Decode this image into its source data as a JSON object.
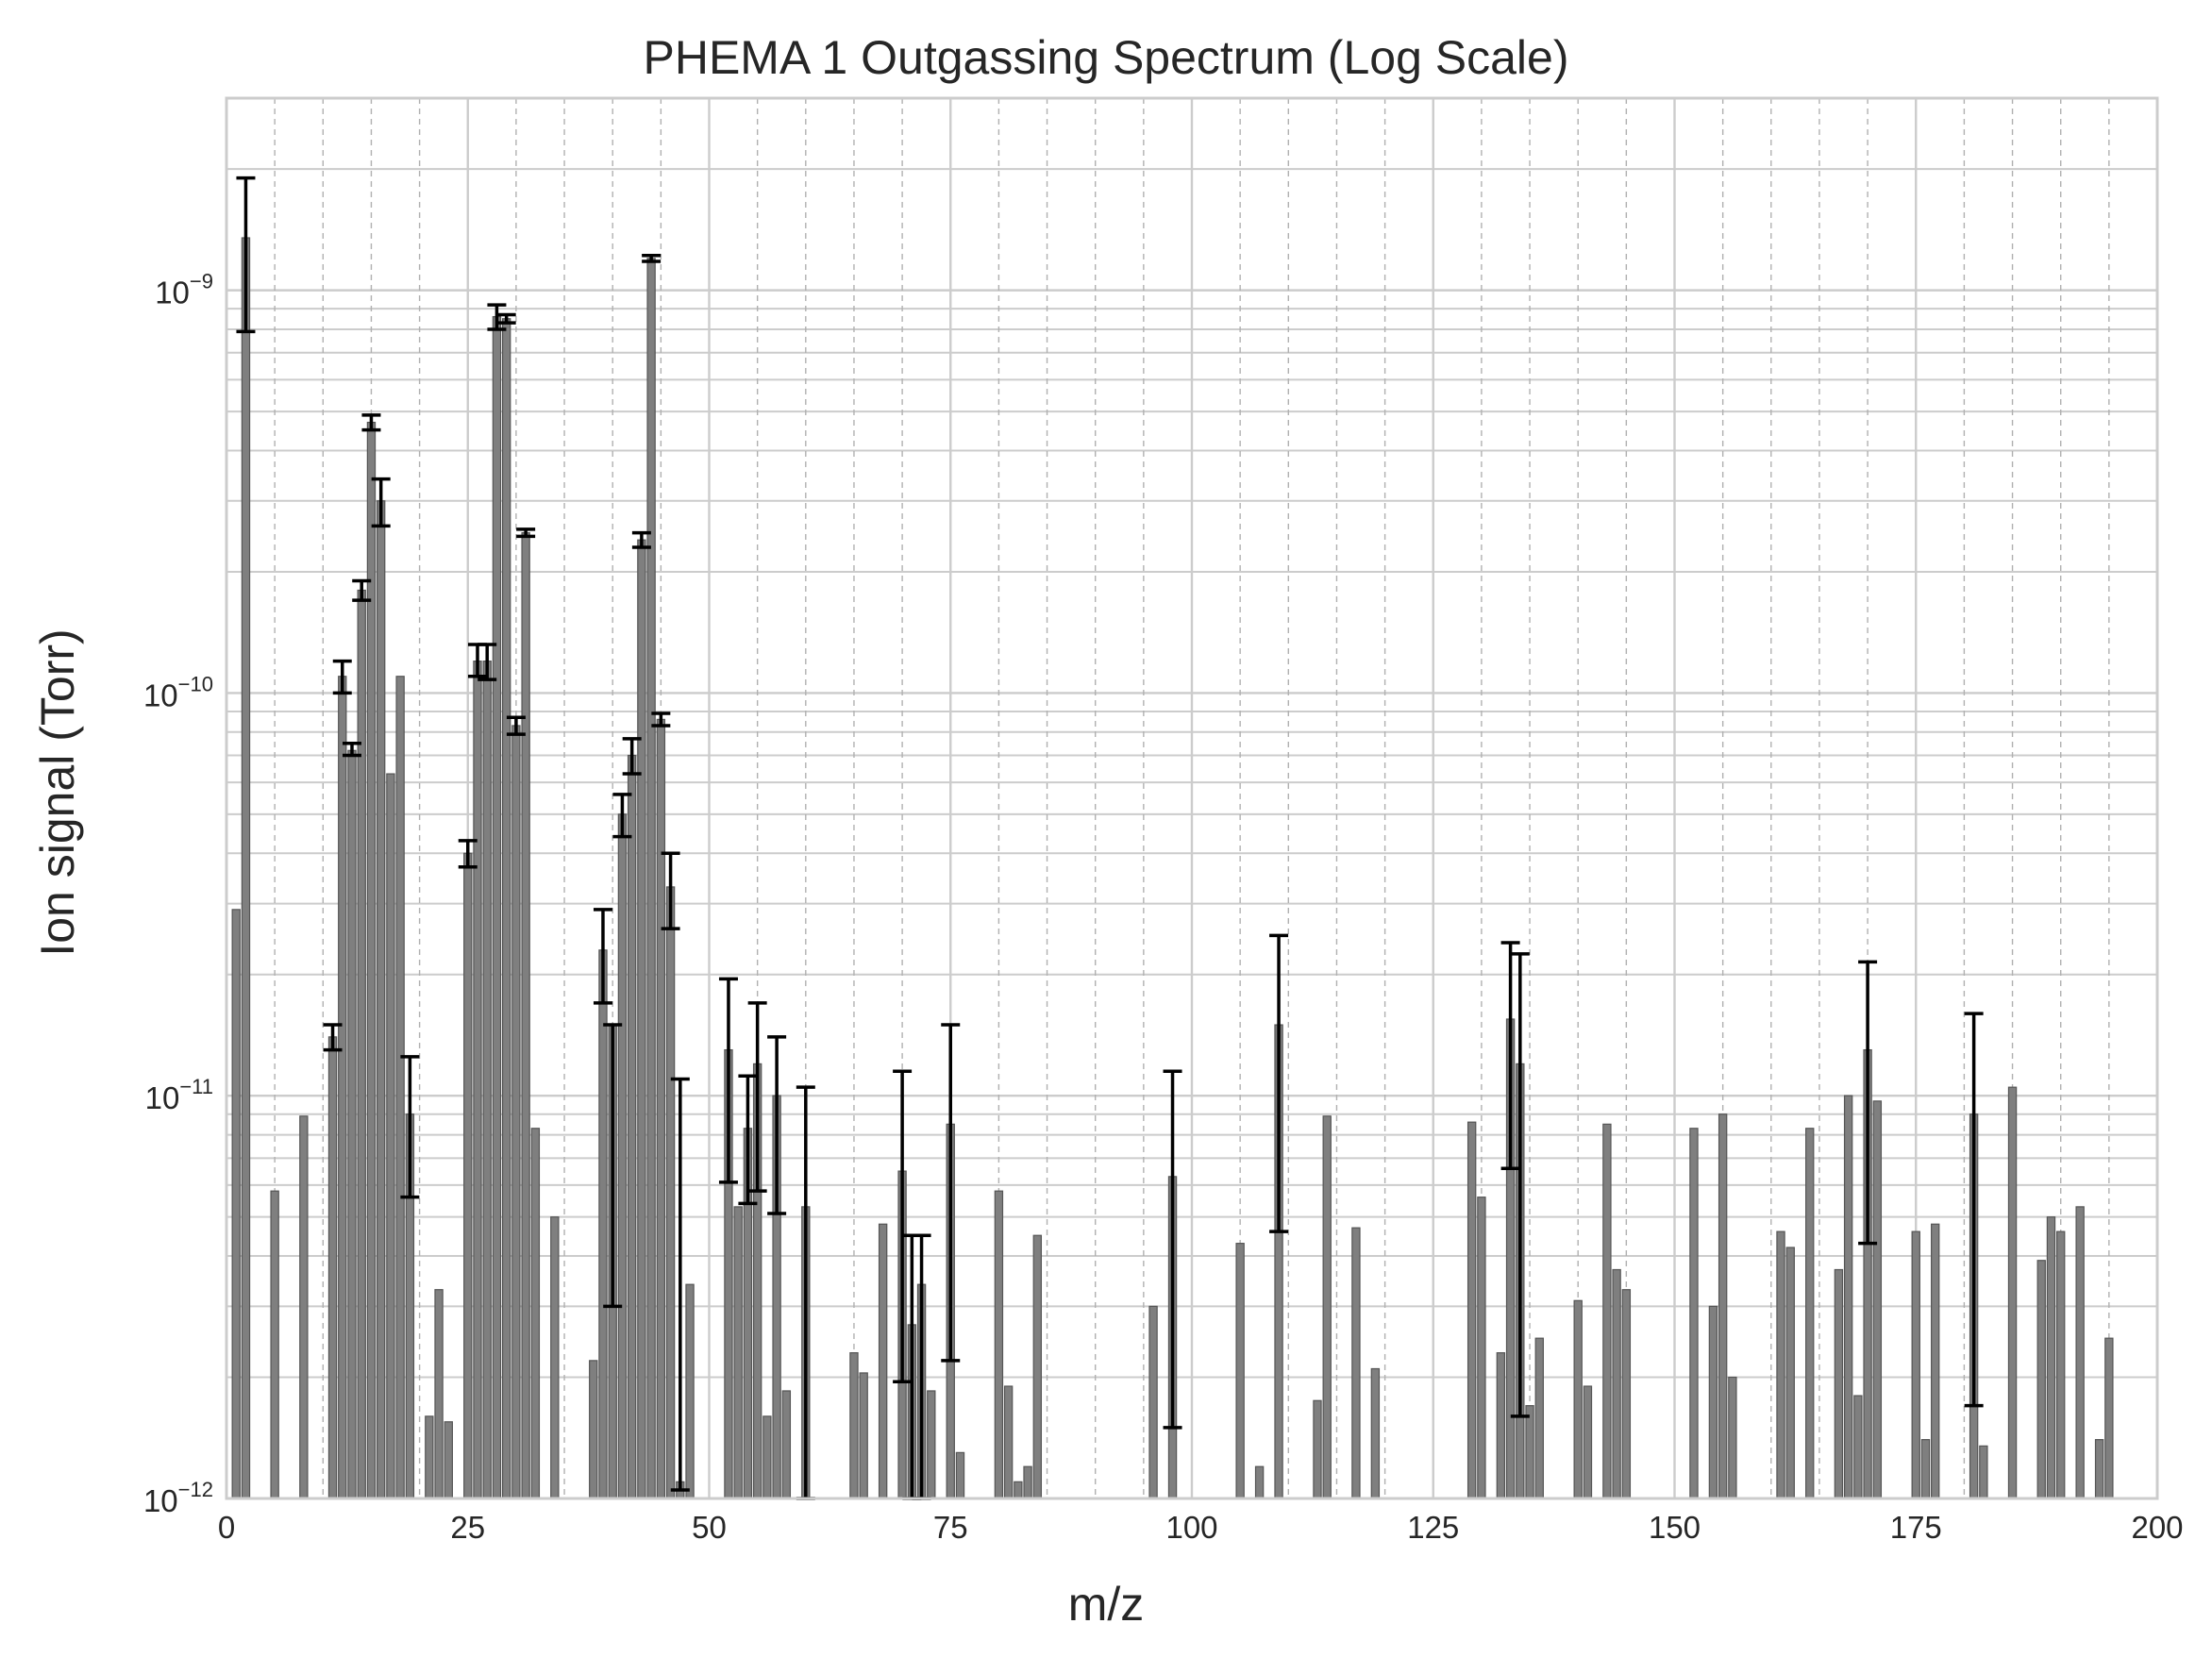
{
  "chart_data": {
    "type": "bar",
    "title": "PHEMA 1 Outgassing Spectrum (Log Scale)",
    "xlabel": "m/z",
    "ylabel": "Ion signal (Torr)",
    "xlim": [
      0,
      200
    ],
    "ylim": [
      1e-12,
      3e-09
    ],
    "yscale": "log",
    "grid": true,
    "x_ticks": [
      0,
      25,
      50,
      75,
      100,
      125,
      150,
      175,
      200
    ],
    "y_ticks": [
      {
        "value": 1e-12,
        "base": "10",
        "exp": "−12"
      },
      {
        "value": 1e-11,
        "base": "10",
        "exp": "−11"
      },
      {
        "value": 1e-10,
        "base": "10",
        "exp": "−10"
      },
      {
        "value": 1e-09,
        "base": "10",
        "exp": "−9"
      }
    ],
    "bar_color": "#7f7f7f",
    "error_color": "#000000",
    "bars": [
      {
        "x": 1,
        "y": 2.9e-11
      },
      {
        "x": 2,
        "y": 1.35e-09,
        "err": [
          7.9e-10,
          1.9e-09
        ]
      },
      {
        "x": 5,
        "y": 5.8e-12
      },
      {
        "x": 8,
        "y": 8.9e-12
      },
      {
        "x": 11,
        "y": 1.4e-11,
        "err": [
          1.3e-11,
          1.5e-11
        ]
      },
      {
        "x": 12,
        "y": 1.1e-10,
        "err": [
          1e-10,
          1.2e-10
        ]
      },
      {
        "x": 13,
        "y": 7.2e-11,
        "err": [
          7e-11,
          7.5e-11
        ]
      },
      {
        "x": 14,
        "y": 1.8e-10,
        "err": [
          1.7e-10,
          1.9e-10
        ]
      },
      {
        "x": 15,
        "y": 4.7e-10,
        "err": [
          4.5e-10,
          4.9e-10
        ]
      },
      {
        "x": 16,
        "y": 3e-10,
        "err": [
          2.6e-10,
          3.4e-10
        ]
      },
      {
        "x": 17,
        "y": 6.3e-11
      },
      {
        "x": 18,
        "y": 1.1e-10
      },
      {
        "x": 19,
        "y": 9e-12,
        "err": [
          5.6e-12,
          1.25e-11
        ]
      },
      {
        "x": 21,
        "y": 1.6e-12
      },
      {
        "x": 22,
        "y": 3.3e-12
      },
      {
        "x": 23,
        "y": 1.55e-12
      },
      {
        "x": 25,
        "y": 4e-11,
        "err": [
          3.7e-11,
          4.3e-11
        ]
      },
      {
        "x": 26,
        "y": 1.2e-10,
        "err": [
          1.1e-10,
          1.32e-10
        ]
      },
      {
        "x": 27,
        "y": 1.2e-10,
        "err": [
          1.08e-10,
          1.32e-10
        ]
      },
      {
        "x": 28,
        "y": 8.6e-10,
        "err": [
          8e-10,
          9.2e-10
        ]
      },
      {
        "x": 29,
        "y": 8.5e-10,
        "err": [
          8.3e-10,
          8.7e-10
        ]
      },
      {
        "x": 30,
        "y": 8.3e-11,
        "err": [
          7.9e-11,
          8.7e-11
        ]
      },
      {
        "x": 31,
        "y": 2.5e-10,
        "err": [
          2.45e-10,
          2.55e-10
        ]
      },
      {
        "x": 32,
        "y": 8.3e-12
      },
      {
        "x": 34,
        "y": 5e-12
      },
      {
        "x": 38,
        "y": 2.2e-12
      },
      {
        "x": 39,
        "y": 2.3e-11,
        "err": [
          1.7e-11,
          2.9e-11
        ]
      },
      {
        "x": 40,
        "y": 1.5e-11,
        "err": [
          3e-12,
          1.5e-11
        ]
      },
      {
        "x": 41,
        "y": 5e-11,
        "err": [
          4.4e-11,
          5.6e-11
        ]
      },
      {
        "x": 42,
        "y": 7e-11,
        "err": [
          6.3e-11,
          7.7e-11
        ]
      },
      {
        "x": 43,
        "y": 2.4e-10,
        "err": [
          2.3e-10,
          2.5e-10
        ]
      },
      {
        "x": 44,
        "y": 1.2e-09,
        "err": [
          1.18e-09,
          1.22e-09
        ]
      },
      {
        "x": 45,
        "y": 8.6e-11,
        "err": [
          8.3e-11,
          8.9e-11
        ]
      },
      {
        "x": 46,
        "y": 3.3e-11,
        "err": [
          2.6e-11,
          4e-11
        ]
      },
      {
        "x": 47,
        "y": 1.1e-12,
        "err": [
          1.05e-12,
          1.1e-11
        ]
      },
      {
        "x": 48,
        "y": 3.4e-12
      },
      {
        "x": 52,
        "y": 1.3e-11,
        "err": [
          6.1e-12,
          1.95e-11
        ]
      },
      {
        "x": 53,
        "y": 5.3e-12
      },
      {
        "x": 54,
        "y": 8.3e-12,
        "err": [
          5.4e-12,
          1.12e-11
        ]
      },
      {
        "x": 55,
        "y": 1.2e-11,
        "err": [
          5.8e-12,
          1.7e-11
        ]
      },
      {
        "x": 56,
        "y": 1.6e-12
      },
      {
        "x": 57,
        "y": 1e-11,
        "err": [
          5.1e-12,
          1.4e-11
        ]
      },
      {
        "x": 58,
        "y": 1.85e-12
      },
      {
        "x": 60,
        "y": 5.3e-12,
        "err": [
          1e-12,
          1.05e-11
        ]
      },
      {
        "x": 65,
        "y": 2.3e-12
      },
      {
        "x": 66,
        "y": 2.05e-12
      },
      {
        "x": 68,
        "y": 4.8e-12
      },
      {
        "x": 70,
        "y": 6.5e-12,
        "err": [
          1.95e-12,
          1.15e-11
        ]
      },
      {
        "x": 71,
        "y": 2.7e-12,
        "err": [
          1e-12,
          4.5e-12
        ]
      },
      {
        "x": 72,
        "y": 3.4e-12,
        "err": [
          1e-12,
          4.5e-12
        ]
      },
      {
        "x": 73,
        "y": 1.85e-12
      },
      {
        "x": 75,
        "y": 8.5e-12,
        "err": [
          2.2e-12,
          1.5e-11
        ]
      },
      {
        "x": 76,
        "y": 1.3e-12
      },
      {
        "x": 80,
        "y": 5.8e-12
      },
      {
        "x": 81,
        "y": 1.9e-12
      },
      {
        "x": 82,
        "y": 1.1e-12
      },
      {
        "x": 83,
        "y": 1.2e-12
      },
      {
        "x": 84,
        "y": 4.5e-12
      },
      {
        "x": 96,
        "y": 3e-12
      },
      {
        "x": 98,
        "y": 6.3e-12,
        "err": [
          1.5e-12,
          1.15e-11
        ]
      },
      {
        "x": 105,
        "y": 4.3e-12
      },
      {
        "x": 107,
        "y": 1.2e-12
      },
      {
        "x": 109,
        "y": 1.5e-11,
        "err": [
          4.6e-12,
          2.5e-11
        ]
      },
      {
        "x": 113,
        "y": 1.75e-12
      },
      {
        "x": 114,
        "y": 8.9e-12
      },
      {
        "x": 117,
        "y": 4.7e-12
      },
      {
        "x": 119,
        "y": 2.1e-12
      },
      {
        "x": 129,
        "y": 8.6e-12
      },
      {
        "x": 130,
        "y": 5.6e-12
      },
      {
        "x": 132,
        "y": 2.3e-12
      },
      {
        "x": 133,
        "y": 1.55e-11,
        "err": [
          6.6e-12,
          2.4e-11
        ]
      },
      {
        "x": 134,
        "y": 1.2e-11,
        "err": [
          1.6e-12,
          2.25e-11
        ]
      },
      {
        "x": 135,
        "y": 1.7e-12
      },
      {
        "x": 136,
        "y": 2.5e-12
      },
      {
        "x": 140,
        "y": 3.1e-12
      },
      {
        "x": 141,
        "y": 1.9e-12
      },
      {
        "x": 143,
        "y": 8.5e-12
      },
      {
        "x": 144,
        "y": 3.7e-12
      },
      {
        "x": 145,
        "y": 3.3e-12
      },
      {
        "x": 152,
        "y": 8.3e-12
      },
      {
        "x": 154,
        "y": 3e-12
      },
      {
        "x": 155,
        "y": 9e-12
      },
      {
        "x": 156,
        "y": 2e-12
      },
      {
        "x": 161,
        "y": 4.6e-12
      },
      {
        "x": 162,
        "y": 4.2e-12
      },
      {
        "x": 164,
        "y": 8.3e-12
      },
      {
        "x": 167,
        "y": 3.7e-12
      },
      {
        "x": 168,
        "y": 1e-11
      },
      {
        "x": 169,
        "y": 1.8e-12
      },
      {
        "x": 170,
        "y": 1.3e-11,
        "err": [
          4.3e-12,
          2.15e-11
        ]
      },
      {
        "x": 171,
        "y": 9.7e-12
      },
      {
        "x": 175,
        "y": 4.6e-12
      },
      {
        "x": 176,
        "y": 1.4e-12
      },
      {
        "x": 177,
        "y": 4.8e-12
      },
      {
        "x": 181,
        "y": 9e-12,
        "err": [
          1.7e-12,
          1.6e-11
        ]
      },
      {
        "x": 182,
        "y": 1.35e-12
      },
      {
        "x": 185,
        "y": 1.05e-11
      },
      {
        "x": 188,
        "y": 3.9e-12
      },
      {
        "x": 189,
        "y": 5e-12
      },
      {
        "x": 190,
        "y": 4.6e-12
      },
      {
        "x": 192,
        "y": 5.3e-12
      },
      {
        "x": 194,
        "y": 1.4e-12
      },
      {
        "x": 195,
        "y": 2.5e-12
      }
    ]
  }
}
